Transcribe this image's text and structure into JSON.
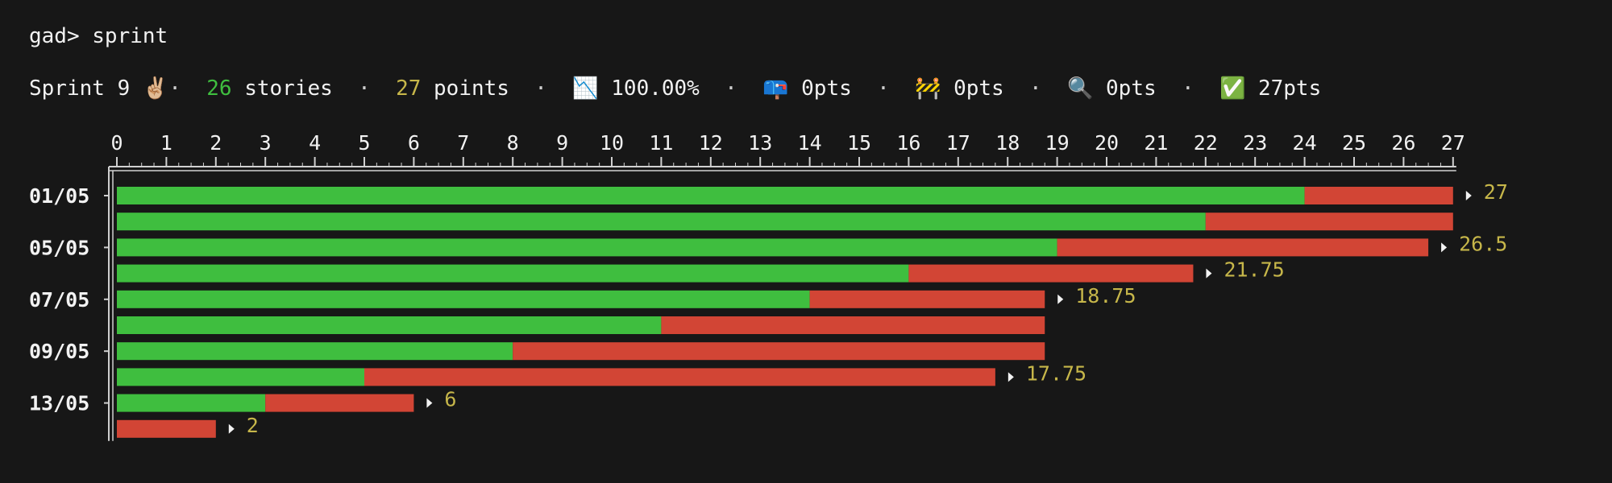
{
  "prompt": {
    "host": "gad>",
    "command": "sprint"
  },
  "summary": {
    "sprint_label": "Sprint 9",
    "sprint_emoji": "✌🏼",
    "stories_count": "26",
    "stories_label": "stories",
    "points_count": "27",
    "points_label": "points",
    "burndown_icon": "📉",
    "percent": "100.00%",
    "todo_icon": "📪",
    "todo_pts": "0pts",
    "blocked_icon": "🚧",
    "blocked_pts": "0pts",
    "review_icon": "🔍",
    "review_pts": "0pts",
    "done_icon": "✅",
    "done_pts": "27pts",
    "separator": "·"
  },
  "colors": {
    "done": "#3fbe3f",
    "remaining": "#d24535",
    "total": "#c7b74a",
    "axis": "#d0d0d0"
  },
  "chart_data": {
    "type": "bar",
    "orientation": "horizontal",
    "stacked": true,
    "xlim": [
      0,
      27
    ],
    "x_ticks": [
      "0",
      "1",
      "2",
      "3",
      "4",
      "5",
      "6",
      "7",
      "8",
      "9",
      "10",
      "11",
      "12",
      "13",
      "14",
      "15",
      "16",
      "17",
      "18",
      "19",
      "20",
      "21",
      "22",
      "23",
      "24",
      "25",
      "26",
      "27"
    ],
    "rows": [
      {
        "date": "01/05",
        "done": 24,
        "remaining": 3,
        "total": "27"
      },
      {
        "date": "",
        "done": 22,
        "remaining": 5,
        "total": ""
      },
      {
        "date": "05/05",
        "done": 19,
        "remaining": 7.5,
        "total": "26.5"
      },
      {
        "date": "",
        "done": 16,
        "remaining": 5.75,
        "total": "21.75"
      },
      {
        "date": "07/05",
        "done": 14,
        "remaining": 4.75,
        "total": "18.75"
      },
      {
        "date": "",
        "done": 11,
        "remaining": 7.75,
        "total": ""
      },
      {
        "date": "09/05",
        "done": 8,
        "remaining": 10.75,
        "total": ""
      },
      {
        "date": "",
        "done": 5,
        "remaining": 12.75,
        "total": "17.75"
      },
      {
        "date": "13/05",
        "done": 3,
        "remaining": 3,
        "total": "6"
      },
      {
        "date": "",
        "done": 0,
        "remaining": 2,
        "total": "2"
      }
    ]
  }
}
